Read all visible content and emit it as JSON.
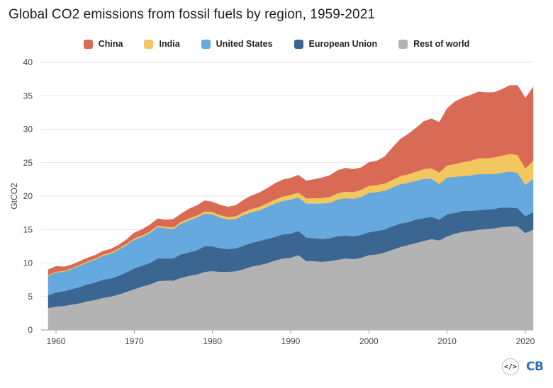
{
  "title": "Global CO2 emissions from fossil fuels by region, 1959-2021",
  "logo": {
    "brand": "CB",
    "embed_icon_text": "</>"
  },
  "colors": {
    "China": "#d96a55",
    "India": "#f3c75f",
    "United States": "#66a9df",
    "European Union": "#3a6691",
    "Rest of world": "#b3b3b3"
  },
  "chart_data": {
    "type": "area",
    "stacked": true,
    "title": "Global CO2 emissions from fossil fuels by region, 1959-2021",
    "xlabel": "",
    "ylabel": "GtCO2",
    "xlim": [
      1959,
      2021
    ],
    "ylim": [
      0,
      40
    ],
    "x_ticks": [
      1960,
      1970,
      1980,
      1990,
      2000,
      2010,
      2020
    ],
    "y_ticks": [
      0,
      5,
      10,
      15,
      20,
      25,
      30,
      35,
      40
    ],
    "grid": "horizontal",
    "legend_position": "top-center",
    "x": [
      1959,
      1960,
      1961,
      1962,
      1963,
      1964,
      1965,
      1966,
      1967,
      1968,
      1969,
      1970,
      1971,
      1972,
      1973,
      1974,
      1975,
      1976,
      1977,
      1978,
      1979,
      1980,
      1981,
      1982,
      1983,
      1984,
      1985,
      1986,
      1987,
      1988,
      1989,
      1990,
      1991,
      1992,
      1993,
      1994,
      1995,
      1996,
      1997,
      1998,
      1999,
      2000,
      2001,
      2002,
      2003,
      2004,
      2005,
      2006,
      2007,
      2008,
      2009,
      2010,
      2011,
      2012,
      2013,
      2014,
      2015,
      2016,
      2017,
      2018,
      2019,
      2020,
      2021
    ],
    "series": [
      {
        "name": "Rest of world",
        "values": [
          3.3,
          3.5,
          3.6,
          3.8,
          4.0,
          4.3,
          4.5,
          4.8,
          5.0,
          5.3,
          5.7,
          6.1,
          6.5,
          6.8,
          7.3,
          7.4,
          7.4,
          7.8,
          8.1,
          8.3,
          8.7,
          8.8,
          8.7,
          8.7,
          8.8,
          9.1,
          9.5,
          9.7,
          10.0,
          10.4,
          10.7,
          10.8,
          11.2,
          10.3,
          10.3,
          10.2,
          10.3,
          10.5,
          10.7,
          10.6,
          10.8,
          11.2,
          11.3,
          11.6,
          12.0,
          12.4,
          12.7,
          13.0,
          13.3,
          13.6,
          13.4,
          14.0,
          14.4,
          14.7,
          14.8,
          15.0,
          15.1,
          15.2,
          15.4,
          15.5,
          15.5,
          14.5,
          15.0
        ]
      },
      {
        "name": "European Union",
        "values": [
          1.9,
          2.1,
          2.2,
          2.3,
          2.4,
          2.5,
          2.6,
          2.7,
          2.7,
          2.8,
          2.9,
          3.1,
          3.1,
          3.2,
          3.4,
          3.3,
          3.3,
          3.5,
          3.5,
          3.6,
          3.8,
          3.7,
          3.5,
          3.4,
          3.4,
          3.5,
          3.5,
          3.6,
          3.6,
          3.5,
          3.6,
          3.6,
          3.6,
          3.5,
          3.4,
          3.4,
          3.4,
          3.5,
          3.4,
          3.4,
          3.4,
          3.4,
          3.5,
          3.4,
          3.5,
          3.5,
          3.4,
          3.5,
          3.4,
          3.3,
          3.1,
          3.3,
          3.1,
          3.1,
          3.0,
          2.9,
          2.9,
          2.9,
          2.9,
          2.8,
          2.7,
          2.5,
          2.6
        ]
      },
      {
        "name": "United States",
        "values": [
          2.9,
          3.0,
          2.9,
          3.0,
          3.2,
          3.3,
          3.4,
          3.6,
          3.7,
          3.9,
          4.1,
          4.3,
          4.3,
          4.5,
          4.7,
          4.5,
          4.4,
          4.6,
          4.8,
          4.9,
          4.9,
          4.8,
          4.6,
          4.4,
          4.4,
          4.6,
          4.6,
          4.6,
          4.8,
          5.0,
          5.0,
          5.1,
          5.0,
          5.1,
          5.2,
          5.3,
          5.3,
          5.5,
          5.6,
          5.6,
          5.7,
          5.9,
          5.8,
          5.8,
          5.8,
          5.9,
          5.9,
          5.8,
          5.9,
          5.7,
          5.3,
          5.5,
          5.4,
          5.2,
          5.3,
          5.4,
          5.3,
          5.2,
          5.2,
          5.4,
          5.3,
          4.7,
          5.0
        ]
      },
      {
        "name": "India",
        "values": [
          0.12,
          0.12,
          0.13,
          0.14,
          0.15,
          0.16,
          0.17,
          0.18,
          0.19,
          0.19,
          0.2,
          0.21,
          0.22,
          0.23,
          0.23,
          0.24,
          0.26,
          0.27,
          0.29,
          0.3,
          0.32,
          0.34,
          0.37,
          0.39,
          0.42,
          0.44,
          0.48,
          0.51,
          0.56,
          0.6,
          0.65,
          0.7,
          0.74,
          0.78,
          0.8,
          0.84,
          0.9,
          0.94,
          0.99,
          1.02,
          1.06,
          1.03,
          1.07,
          1.09,
          1.13,
          1.2,
          1.26,
          1.36,
          1.45,
          1.58,
          1.74,
          1.8,
          1.92,
          2.1,
          2.2,
          2.39,
          2.38,
          2.5,
          2.55,
          2.65,
          2.65,
          2.45,
          2.7
        ]
      },
      {
        "name": "China",
        "values": [
          0.8,
          0.8,
          0.6,
          0.5,
          0.5,
          0.5,
          0.5,
          0.5,
          0.5,
          0.5,
          0.6,
          0.8,
          0.9,
          1.0,
          1.0,
          1.0,
          1.2,
          1.2,
          1.4,
          1.5,
          1.6,
          1.5,
          1.5,
          1.5,
          1.6,
          1.8,
          2.0,
          2.1,
          2.2,
          2.4,
          2.5,
          2.5,
          2.6,
          2.6,
          2.8,
          3.0,
          3.2,
          3.4,
          3.5,
          3.4,
          3.3,
          3.5,
          3.6,
          4.0,
          4.8,
          5.5,
          6.0,
          6.5,
          7.1,
          7.4,
          7.5,
          8.5,
          9.3,
          9.6,
          9.8,
          9.9,
          9.8,
          9.7,
          9.9,
          10.2,
          10.4,
          10.5,
          11.0
        ]
      }
    ]
  }
}
